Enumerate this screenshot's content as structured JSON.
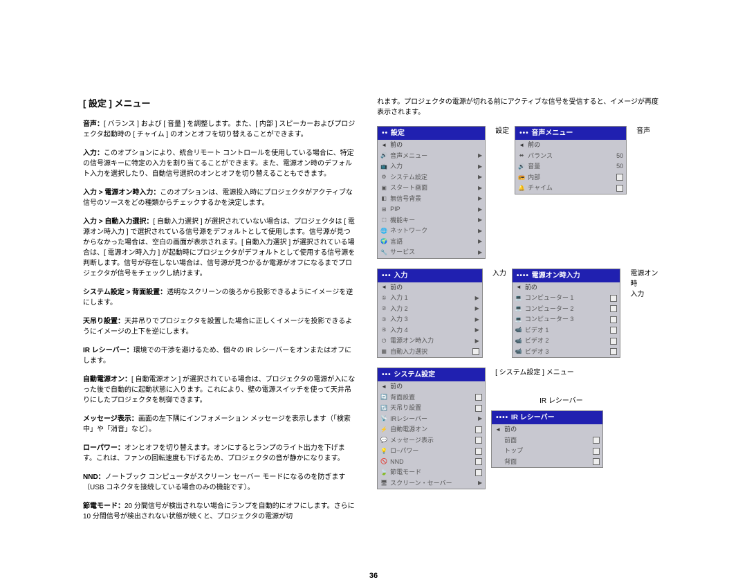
{
  "page_title": "[ 設定 ] メニュー",
  "page_number": "36",
  "left_paragraphs": [
    {
      "bold": "音声：",
      "text": "[ バランス ] および [ 音量 ] を調整します。また、[ 内部 ] スピーカーおよびプロジェクタ起動時の [ チャイム ] のオンとオフを切り替えることができます。"
    },
    {
      "bold": "入力：",
      "text": "このオプションにより、統合リモート コントロールを使用している場合に、特定の信号源キーに特定の入力を割り当てることができます。また、電源オン時のデフォルト入力を選択したり、自動信号選択のオンとオフを切り替えることもできます。"
    },
    {
      "bold": "入力 > 電源オン時入力：",
      "text": "このオプションは、電源投入時にプロジェクタがアクティブな信号のソースをどの種類からチェックするかを決定します。"
    },
    {
      "bold": "入力 > 自動入力選択：",
      "text": "[ 自動入力選択 ] が選択されていない場合は、プロジェクタは [ 電源オン時入力 ] で選択されている信号源をデフォルトとして使用します。信号源が見つからなかった場合は、空白の画面が表示されます。[ 自動入力選択 ] が選択されている場合は、[ 電源オン時入力 ] が起動時にプロジェクタがデフォルトとして使用する信号源を判断します。信号が存在しない場合は、信号源が見つかるか電源がオフになるまでプロジェクタが信号をチェックし続けます。"
    },
    {
      "bold": "システム設定 > 背面設置：",
      "text": "透明なスクリーンの後ろから投影できるようにイメージを逆にします。"
    },
    {
      "bold": "天吊り設置：",
      "text": "天井吊りでプロジェクタを設置した場合に正しくイメージを投影できるようにイメージの上下を逆にします。"
    },
    {
      "bold": "IR レシーバー：",
      "text": "環境での干渉を避けるため、個々の IR レシーバーをオンまたはオフにします。"
    },
    {
      "bold": "自動電源オン：",
      "text": "[ 自動電源オン ] が選択されている場合は、プロジェクタの電源が入になった後で自動的に起動状態に入ります。これにより、壁の電源スイッチを使って天井吊りにしたプロジェクタを制御できます。"
    },
    {
      "bold": "メッセージ表示：",
      "text": "画面の左下隅にインフォメーション メッセージを表示します（「検索中」や「消音」など）。"
    },
    {
      "bold": "ローパワー：",
      "text": "オンとオフを切り替えます。オンにするとランプのライト出力を下げます。これは、ファンの回転速度も下げるため、プロジェクタの音が静かになります。"
    },
    {
      "bold": "NND：",
      "text": "ノートブック コンピュータがスクリーン セーバー モードになるのを防ぎます（USB コネクタを接続している場合のみの機能です）。"
    },
    {
      "bold": "節電モード：",
      "text": "20 分間信号が検出されない場合にランプを自動的にオフにします。さらに 10 分間信号が検出されない状態が続くと、プロジェクタの電源が切"
    }
  ],
  "right_intro": "れます。プロジェクタの電源が切れる前にアクティブな信号を受信すると、イメージが再度表示されます。",
  "menus": {
    "settei": {
      "title": "設定",
      "caption": "設定",
      "dots": "••",
      "items": [
        {
          "icon": "◄",
          "label": "前の",
          "back": true
        },
        {
          "icon": "🔊",
          "label": "音声メニュー",
          "arrow": true
        },
        {
          "icon": "📺",
          "label": "入力",
          "arrow": true
        },
        {
          "icon": "⚙",
          "label": "システム設定",
          "arrow": true
        },
        {
          "icon": "▣",
          "label": "スタート画面",
          "arrow": true
        },
        {
          "icon": "◧",
          "label": "無信号背景",
          "arrow": true
        },
        {
          "icon": "⊞",
          "label": "PIP",
          "arrow": true
        },
        {
          "icon": "⬚",
          "label": "機能キー",
          "arrow": true
        },
        {
          "icon": "🌐",
          "label": "ネットワーク",
          "arrow": true
        },
        {
          "icon": "🌍",
          "label": "言語",
          "arrow": true
        },
        {
          "icon": "🔧",
          "label": "サービス",
          "arrow": true
        }
      ]
    },
    "onsei": {
      "title": "音声メニュー",
      "caption": "音声",
      "dots": "•••",
      "items": [
        {
          "icon": "◄",
          "label": "前の",
          "back": true
        },
        {
          "icon": "⬌",
          "label": "バランス",
          "value": "50"
        },
        {
          "icon": "🔊",
          "label": "音量",
          "value": "50"
        },
        {
          "icon": "📻",
          "label": "内部",
          "check": true
        },
        {
          "icon": "🔔",
          "label": "チャイム",
          "check": true
        }
      ]
    },
    "nyuryoku": {
      "title": "入力",
      "caption": "入力",
      "dots": "•••",
      "items": [
        {
          "icon": "◄",
          "label": "前の",
          "back": true
        },
        {
          "icon": "①",
          "label": "入力 1",
          "arrow": true
        },
        {
          "icon": "②",
          "label": "入力 2",
          "arrow": true
        },
        {
          "icon": "③",
          "label": "入力 3",
          "arrow": true
        },
        {
          "icon": "④",
          "label": "入力 4",
          "arrow": true
        },
        {
          "icon": "⏻",
          "label": "電源オン時入力",
          "arrow": true
        },
        {
          "icon": "▦",
          "label": "自動入力選択",
          "check": true
        }
      ]
    },
    "dengen": {
      "title": "電源オン時入力",
      "caption": "電源オン時\n入力",
      "dots": "••••",
      "items": [
        {
          "icon": "◄",
          "label": "前の",
          "back": true
        },
        {
          "icon": "💻",
          "label": "コンピューター 1",
          "check": true
        },
        {
          "icon": "💻",
          "label": "コンピューター 2",
          "check": true
        },
        {
          "icon": "💻",
          "label": "コンピューター 3",
          "check": true
        },
        {
          "icon": "📹",
          "label": "ビデオ 1",
          "check": true
        },
        {
          "icon": "📹",
          "label": "ビデオ 2",
          "check": true
        },
        {
          "icon": "📹",
          "label": "ビデオ 3",
          "check": true
        }
      ]
    },
    "system": {
      "title": "システム設定",
      "caption": "[ システム設定 ] メニュー",
      "dots": "•••",
      "items": [
        {
          "icon": "◄",
          "label": "前の",
          "back": true
        },
        {
          "icon": "🔄",
          "label": "背面設置",
          "check": true
        },
        {
          "icon": "🔃",
          "label": "天吊り設置",
          "check": true
        },
        {
          "icon": "📡",
          "label": "IRレシーバー",
          "arrow": true
        },
        {
          "icon": "⚡",
          "label": "自動電源オン",
          "check": true
        },
        {
          "icon": "💬",
          "label": "メッセージ表示",
          "check": true
        },
        {
          "icon": "💡",
          "label": "ロ−パワー",
          "check": true
        },
        {
          "icon": "🚫",
          "label": "NND",
          "check": true
        },
        {
          "icon": "🍃",
          "label": "節電モード",
          "check": true
        },
        {
          "icon": "🖥",
          "label": "スクリーン・セーバー",
          "arrow": true
        }
      ]
    },
    "ir": {
      "title": "IR レシーバー",
      "caption": "IR レシーバー",
      "dots": "••••",
      "items": [
        {
          "icon": "◄",
          "label": "前の",
          "back": true
        },
        {
          "icon": "",
          "label": "前面",
          "check": true
        },
        {
          "icon": "",
          "label": "トップ",
          "check": true
        },
        {
          "icon": "",
          "label": "背面",
          "check": true
        }
      ]
    }
  },
  "colors": {
    "menu_bg": "#c8c8d0",
    "header_bg": "#2020b0",
    "header_fg": "#ffffff",
    "item_fg": "#555555"
  }
}
